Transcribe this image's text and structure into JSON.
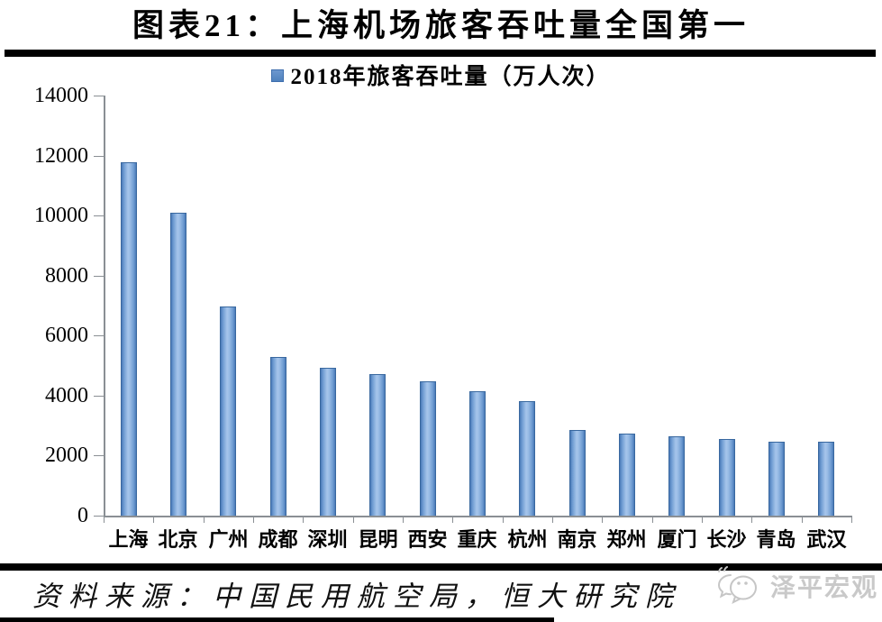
{
  "figure": {
    "title": "图表21：上海机场旅客吞吐量全国第一",
    "source": "资料来源：中国民用航空局，恒大研究院",
    "watermark": "泽平宏观"
  },
  "chart_data": {
    "type": "bar",
    "title": "图表21：上海机场旅客吞吐量全国第一",
    "legend": "2018年旅客吞吐量（万人次）",
    "legend_position": "top",
    "unit": "万人次",
    "categories": [
      "上海",
      "北京",
      "广州",
      "成都",
      "深圳",
      "昆明",
      "西安",
      "重庆",
      "杭州",
      "南京",
      "郑州",
      "厦门",
      "长沙",
      "青岛",
      "武汉"
    ],
    "values": [
      11764,
      10098,
      6974,
      5295,
      4935,
      4709,
      4465,
      4160,
      3824,
      2858,
      2733,
      2655,
      2560,
      2454,
      2450
    ],
    "xlabel": "",
    "ylabel": "",
    "ylim": [
      0,
      14000
    ],
    "yticks": [
      0,
      2000,
      4000,
      6000,
      8000,
      10000,
      12000,
      14000
    ],
    "grid": false,
    "colors": {
      "bar_fill": "#4f81bd",
      "bar_fill_light": "#a6c5eb",
      "bar_border": "#39689f",
      "axis": "#8a8f94",
      "text": "#000000",
      "watermark": "#c9c9c9"
    }
  }
}
